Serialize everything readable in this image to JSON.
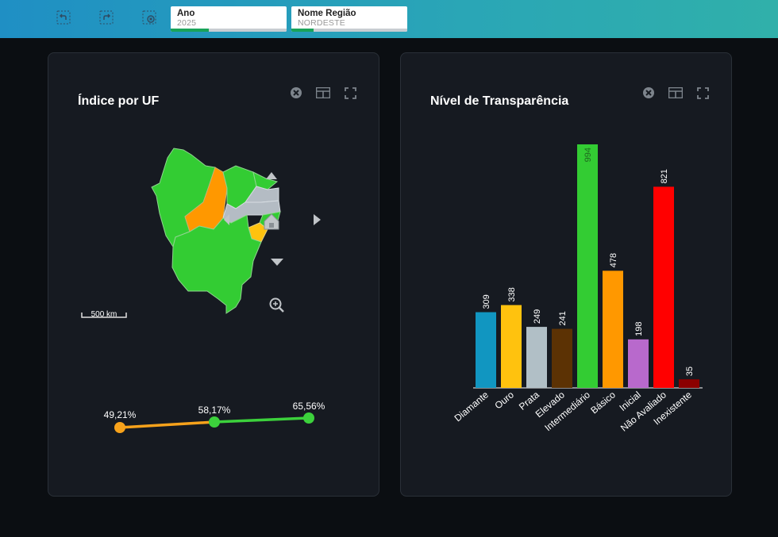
{
  "toolbar": {
    "filters": [
      {
        "label": "Ano",
        "value": "2025"
      },
      {
        "label": "Nome Região",
        "value": "NORDESTE"
      }
    ]
  },
  "panels": {
    "map": {
      "title": "Índice por UF",
      "scale": "500 km",
      "trend": [
        {
          "label": "49,21%",
          "value": 49.21,
          "color": "#f7a21b"
        },
        {
          "label": "58,17%",
          "value": 58.17,
          "color": "#3cd13c"
        },
        {
          "label": "65,56%",
          "value": 65.56,
          "color": "#3cd13c"
        }
      ]
    },
    "bar": {
      "title": "Nível de Transparência"
    }
  },
  "chart_data": {
    "type": "bar",
    "title": "Nível de Transparência",
    "categories": [
      "Diamante",
      "Ouro",
      "Prata",
      "Elevado",
      "Intermediário",
      "Básico",
      "Inicial",
      "Não Avaliado",
      "Inexistente"
    ],
    "values": [
      309,
      338,
      249,
      241,
      994,
      478,
      198,
      821,
      35
    ],
    "colors": [
      "#1196c1",
      "#ffc20e",
      "#b1bfc6",
      "#5c3204",
      "#33cc33",
      "#ff9800",
      "#b869cc",
      "#ff0000",
      "#8b0000"
    ],
    "ylim": [
      0,
      994
    ]
  }
}
